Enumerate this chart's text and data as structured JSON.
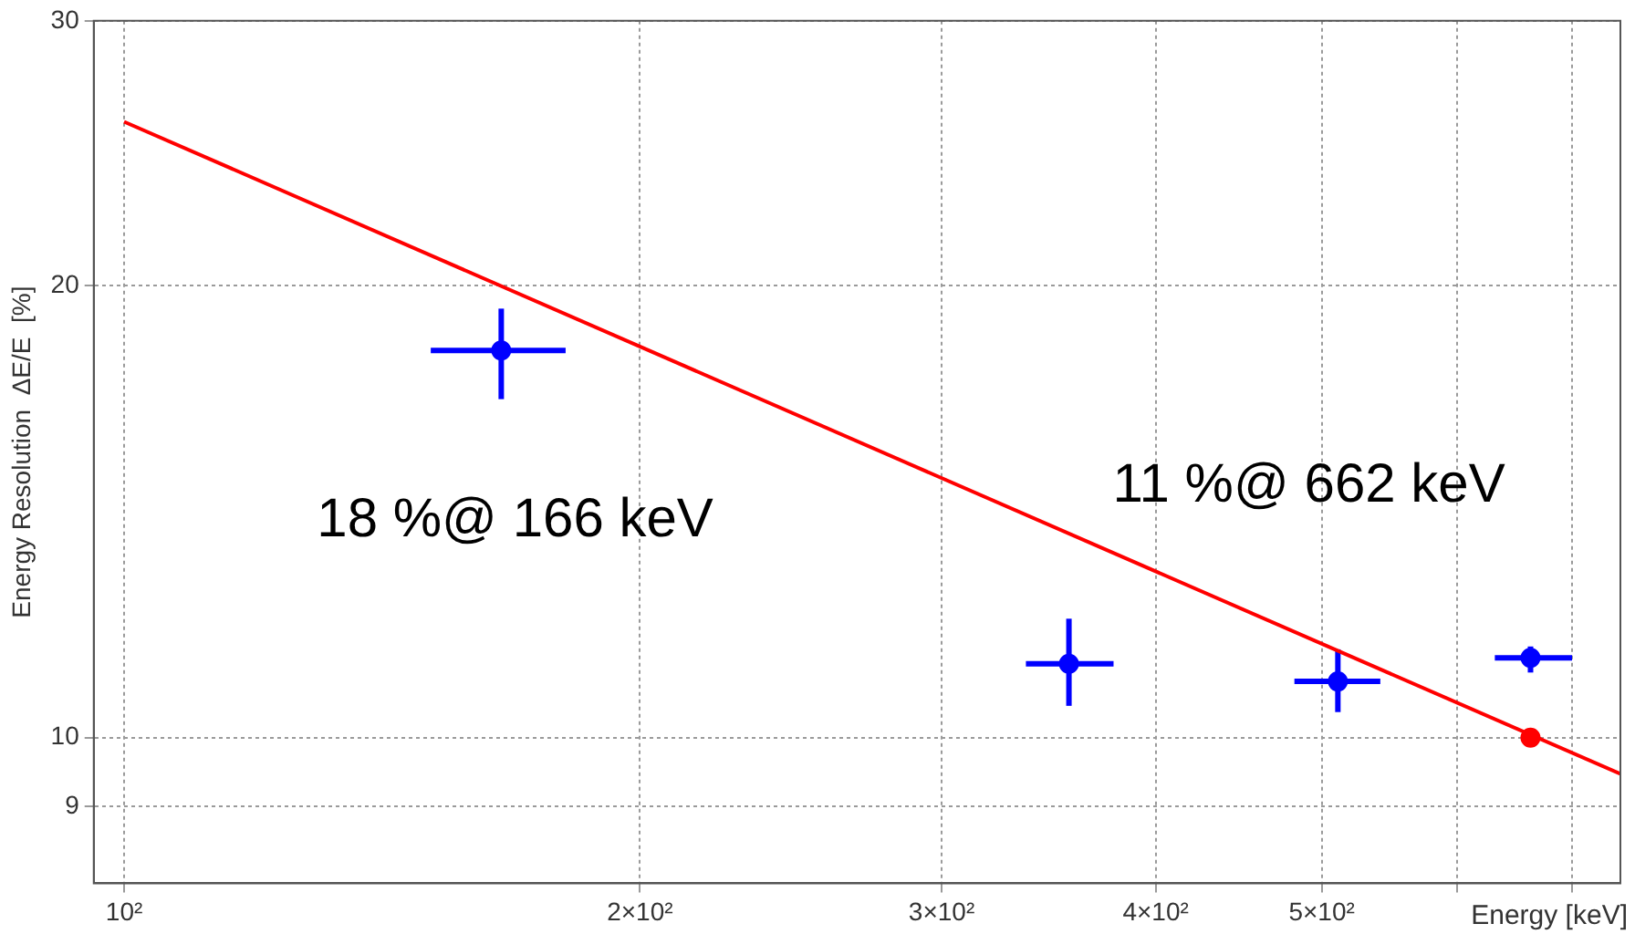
{
  "chart_data": {
    "type": "scatter",
    "xlabel": "Energy [keV]",
    "ylabel": "Energy Resolution  ΔE/E  [%]",
    "log": "xy",
    "grid": true,
    "legend": false,
    "marker": "circle",
    "xlim": [
      96,
      747
    ],
    "xticks": [
      {
        "value": 100,
        "label": "10²"
      },
      {
        "value": 200,
        "label": "2×10²"
      },
      {
        "value": 300,
        "label": "3×10²"
      },
      {
        "value": 400,
        "label": "4×10²"
      },
      {
        "value": 500,
        "label": "5×10²"
      },
      {
        "value": 600,
        "label": null
      },
      {
        "value": 700,
        "label": null
      }
    ],
    "ylim": [
      8,
      30
    ],
    "yticks": [
      9,
      10,
      20,
      30
    ],
    "series": [
      {
        "type": "line",
        "color": "#ff0000",
        "marker": "none",
        "x": [
          100,
          747
        ],
        "values": [
          25.7,
          9.46
        ]
      },
      {
        "color": "#0000ff",
        "x": [
          166,
          356,
          511,
          662
        ],
        "values": [
          18.1,
          11.2,
          10.9,
          11.3
        ],
        "errors": [
          [
            16.8,
            19.3
          ],
          [
            10.5,
            12.0
          ],
          [
            10.4,
            11.45
          ],
          [
            11.05,
            11.5
          ]
        ],
        "xerrors": [
          [
            151,
            181
          ],
          [
            336,
            378
          ],
          [
            482,
            541
          ],
          [
            631,
            700
          ]
        ]
      },
      {
        "color": "#ff0000",
        "x": [
          662
        ],
        "values": [
          10
        ]
      }
    ],
    "annotations": [
      "18 %@ 166 keV",
      "11 %@ 662 keV"
    ]
  }
}
